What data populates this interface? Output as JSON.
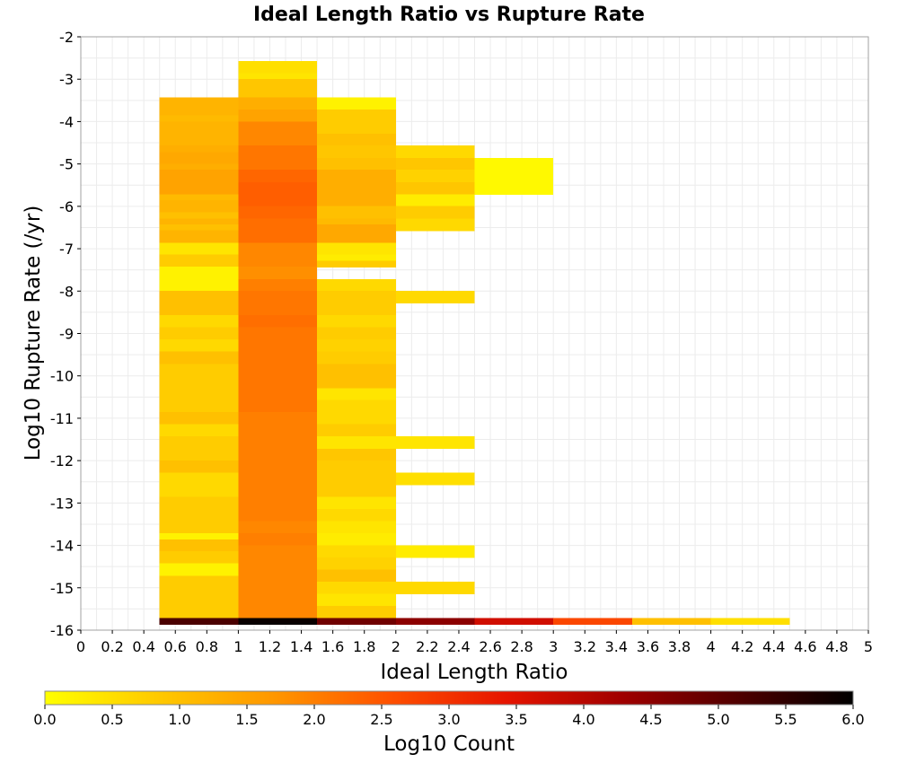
{
  "chart_data": {
    "type": "heatmap",
    "title": "Ideal Length Ratio vs Rupture Rate",
    "xlabel": "Ideal Length Ratio",
    "ylabel": "Log10 Rupture Rate (/yr)",
    "xlim": [
      0,
      5
    ],
    "ylim": [
      -16,
      -2
    ],
    "x_ticks": [
      "0",
      "0.2",
      "0.4",
      "0.6",
      "0.8",
      "1",
      "1.2",
      "1.4",
      "1.6",
      "1.8",
      "2",
      "2.2",
      "2.4",
      "2.6",
      "2.8",
      "3",
      "3.2",
      "3.4",
      "3.6",
      "3.8",
      "4",
      "4.2",
      "4.4",
      "4.6",
      "4.8",
      "5"
    ],
    "y_ticks": [
      "-2",
      "-3",
      "-4",
      "-5",
      "-6",
      "-7",
      "-8",
      "-9",
      "-10",
      "-11",
      "-12",
      "-13",
      "-14",
      "-15",
      "-16"
    ],
    "grid": true,
    "x_bin_width": 0.5,
    "y_bin_height": 0.143,
    "colorbar": {
      "label": "Log10 Count",
      "min": 0,
      "max": 6,
      "ticks": [
        "0.0",
        "0.5",
        "1.0",
        "1.5",
        "2.0",
        "2.5",
        "3.0",
        "3.5",
        "4.0",
        "4.5",
        "5.0",
        "5.5",
        "6.0"
      ],
      "colors": [
        "#ffff00",
        "#ffc800",
        "#ff9600",
        "#ff5000",
        "#e61400",
        "#a00000",
        "#500000",
        "#000000"
      ]
    },
    "columns": [
      {
        "x": 0.5,
        "cells": [
          [
            -3.57,
            1.2
          ],
          [
            -3.71,
            1.2
          ],
          [
            -3.86,
            1.2
          ],
          [
            -4.0,
            1.1
          ],
          [
            -4.14,
            1.2
          ],
          [
            -4.28,
            1.2
          ],
          [
            -4.43,
            1.2
          ],
          [
            -4.57,
            1.2
          ],
          [
            -4.71,
            1.3
          ],
          [
            -4.86,
            1.4
          ],
          [
            -5.0,
            1.4
          ],
          [
            -5.14,
            1.3
          ],
          [
            -5.28,
            1.5
          ],
          [
            -5.43,
            1.5
          ],
          [
            -5.57,
            1.5
          ],
          [
            -5.71,
            1.5
          ],
          [
            -5.86,
            1.1
          ],
          [
            -6.0,
            1.2
          ],
          [
            -6.14,
            1.2
          ],
          [
            -6.28,
            1.0
          ],
          [
            -6.43,
            1.2
          ],
          [
            -6.57,
            1.0
          ],
          [
            -6.71,
            1.2
          ],
          [
            -6.86,
            1.2
          ],
          [
            -7.0,
            0.4
          ],
          [
            -7.14,
            0.4
          ],
          [
            -7.28,
            0.8
          ],
          [
            -7.43,
            0.8
          ],
          [
            -7.57,
            0.2
          ],
          [
            -7.71,
            0.2
          ],
          [
            -7.86,
            0.2
          ],
          [
            -8.0,
            0.2
          ],
          [
            -8.14,
            1.0
          ],
          [
            -8.28,
            1.0
          ],
          [
            -8.43,
            1.0
          ],
          [
            -8.57,
            1.0
          ],
          [
            -8.71,
            0.6
          ],
          [
            -8.86,
            0.6
          ],
          [
            -9.0,
            0.8
          ],
          [
            -9.14,
            0.8
          ],
          [
            -9.28,
            0.6
          ],
          [
            -9.43,
            0.6
          ],
          [
            -9.57,
            1.0
          ],
          [
            -9.71,
            1.0
          ],
          [
            -9.86,
            0.8
          ],
          [
            -10.0,
            0.8
          ],
          [
            -10.14,
            0.8
          ],
          [
            -10.28,
            0.8
          ],
          [
            -10.43,
            0.8
          ],
          [
            -10.57,
            0.8
          ],
          [
            -10.71,
            0.8
          ],
          [
            -10.86,
            0.8
          ],
          [
            -11.0,
            1.0
          ],
          [
            -11.14,
            1.0
          ],
          [
            -11.28,
            0.6
          ],
          [
            -11.43,
            0.6
          ],
          [
            -11.57,
            0.8
          ],
          [
            -11.71,
            0.8
          ],
          [
            -11.86,
            0.8
          ],
          [
            -12.0,
            0.8
          ],
          [
            -12.14,
            1.0
          ],
          [
            -12.28,
            1.0
          ],
          [
            -12.43,
            0.6
          ],
          [
            -12.57,
            0.6
          ],
          [
            -12.71,
            0.6
          ],
          [
            -12.86,
            0.6
          ],
          [
            -13.0,
            0.8
          ],
          [
            -13.14,
            0.8
          ],
          [
            -13.28,
            0.8
          ],
          [
            -13.43,
            0.8
          ],
          [
            -13.57,
            0.8
          ],
          [
            -13.71,
            0.8
          ],
          [
            -13.86,
            0.2
          ],
          [
            -14.0,
            1.0
          ],
          [
            -14.14,
            1.0
          ],
          [
            -14.28,
            0.8
          ],
          [
            -14.43,
            0.8
          ],
          [
            -14.57,
            0.2
          ],
          [
            -14.71,
            0.2
          ],
          [
            -14.86,
            0.8
          ],
          [
            -15.0,
            0.8
          ],
          [
            -15.14,
            0.8
          ],
          [
            -15.28,
            0.8
          ],
          [
            -15.43,
            0.8
          ],
          [
            -15.57,
            0.8
          ],
          [
            -15.71,
            0.8
          ],
          [
            -15.86,
            5.2
          ]
        ]
      },
      {
        "x": 1.0,
        "cells": [
          [
            -2.71,
            0.5
          ],
          [
            -2.86,
            0.5
          ],
          [
            -3.0,
            0.4
          ],
          [
            -3.14,
            0.9
          ],
          [
            -3.28,
            0.9
          ],
          [
            -3.43,
            0.9
          ],
          [
            -3.57,
            1.3
          ],
          [
            -3.71,
            1.3
          ],
          [
            -3.86,
            1.5
          ],
          [
            -4.0,
            1.5
          ],
          [
            -4.14,
            1.9
          ],
          [
            -4.28,
            1.9
          ],
          [
            -4.43,
            1.9
          ],
          [
            -4.57,
            1.9
          ],
          [
            -4.71,
            2.1
          ],
          [
            -4.86,
            2.1
          ],
          [
            -5.0,
            2.1
          ],
          [
            -5.14,
            2.1
          ],
          [
            -5.28,
            2.3
          ],
          [
            -5.43,
            2.3
          ],
          [
            -5.57,
            2.4
          ],
          [
            -5.71,
            2.4
          ],
          [
            -5.86,
            2.4
          ],
          [
            -6.0,
            2.4
          ],
          [
            -6.14,
            2.3
          ],
          [
            -6.28,
            2.3
          ],
          [
            -6.43,
            2.2
          ],
          [
            -6.57,
            2.2
          ],
          [
            -6.71,
            2.2
          ],
          [
            -6.86,
            2.2
          ],
          [
            -7.0,
            1.9
          ],
          [
            -7.14,
            1.9
          ],
          [
            -7.28,
            1.9
          ],
          [
            -7.43,
            1.9
          ],
          [
            -7.57,
            1.8
          ],
          [
            -7.71,
            1.8
          ],
          [
            -7.86,
            2.0
          ],
          [
            -8.0,
            2.0
          ],
          [
            -8.14,
            2.1
          ],
          [
            -8.28,
            2.1
          ],
          [
            -8.43,
            2.1
          ],
          [
            -8.57,
            2.1
          ],
          [
            -8.71,
            2.2
          ],
          [
            -8.86,
            2.2
          ],
          [
            -9.0,
            2.1
          ],
          [
            -9.14,
            2.1
          ],
          [
            -9.28,
            2.1
          ],
          [
            -9.43,
            2.1
          ],
          [
            -9.57,
            2.1
          ],
          [
            -9.71,
            2.1
          ],
          [
            -9.86,
            2.1
          ],
          [
            -10.0,
            2.1
          ],
          [
            -10.14,
            2.1
          ],
          [
            -10.28,
            2.1
          ],
          [
            -10.43,
            2.1
          ],
          [
            -10.57,
            2.1
          ],
          [
            -10.71,
            2.1
          ],
          [
            -10.86,
            2.1
          ],
          [
            -11.0,
            2.0
          ],
          [
            -11.14,
            2.0
          ],
          [
            -11.28,
            2.0
          ],
          [
            -11.43,
            2.0
          ],
          [
            -11.57,
            2.0
          ],
          [
            -11.71,
            2.0
          ],
          [
            -11.86,
            2.0
          ],
          [
            -12.0,
            2.0
          ],
          [
            -12.14,
            2.0
          ],
          [
            -12.28,
            2.0
          ],
          [
            -12.43,
            2.0
          ],
          [
            -12.57,
            2.0
          ],
          [
            -12.71,
            2.0
          ],
          [
            -12.86,
            2.0
          ],
          [
            -13.0,
            2.0
          ],
          [
            -13.14,
            2.0
          ],
          [
            -13.28,
            2.0
          ],
          [
            -13.43,
            2.0
          ],
          [
            -13.57,
            1.9
          ],
          [
            -13.71,
            1.9
          ],
          [
            -13.86,
            2.0
          ],
          [
            -14.0,
            2.0
          ],
          [
            -14.14,
            1.9
          ],
          [
            -14.28,
            1.9
          ],
          [
            -14.43,
            1.9
          ],
          [
            -14.57,
            1.9
          ],
          [
            -14.71,
            1.9
          ],
          [
            -14.86,
            1.9
          ],
          [
            -15.0,
            1.9
          ],
          [
            -15.14,
            1.9
          ],
          [
            -15.28,
            1.9
          ],
          [
            -15.43,
            1.9
          ],
          [
            -15.57,
            1.9
          ],
          [
            -15.71,
            1.9
          ],
          [
            -15.86,
            5.9
          ]
        ]
      },
      {
        "x": 1.5,
        "cells": [
          [
            -3.57,
            0.2
          ],
          [
            -3.71,
            0.2
          ],
          [
            -3.86,
            0.8
          ],
          [
            -4.0,
            0.8
          ],
          [
            -4.14,
            0.8
          ],
          [
            -4.28,
            0.8
          ],
          [
            -4.43,
            1.0
          ],
          [
            -4.57,
            1.0
          ],
          [
            -4.71,
            0.9
          ],
          [
            -4.86,
            0.9
          ],
          [
            -5.0,
            1.0
          ],
          [
            -5.14,
            1.0
          ],
          [
            -5.28,
            1.3
          ],
          [
            -5.43,
            1.3
          ],
          [
            -5.57,
            1.3
          ],
          [
            -5.71,
            1.3
          ],
          [
            -5.86,
            1.3
          ],
          [
            -6.0,
            1.3
          ],
          [
            -6.14,
            1.0
          ],
          [
            -6.28,
            1.0
          ],
          [
            -6.43,
            1.1
          ],
          [
            -6.57,
            1.4
          ],
          [
            -6.71,
            1.4
          ],
          [
            -6.86,
            1.4
          ],
          [
            -7.0,
            0.4
          ],
          [
            -7.14,
            0.4
          ],
          [
            -7.28,
            0.3
          ],
          [
            -7.43,
            0.8
          ],
          [
            -7.86,
            0.6
          ],
          [
            -8.0,
            0.6
          ],
          [
            -8.14,
            0.8
          ],
          [
            -8.28,
            0.8
          ],
          [
            -8.43,
            0.8
          ],
          [
            -8.57,
            0.8
          ],
          [
            -8.71,
            0.6
          ],
          [
            -8.86,
            0.6
          ],
          [
            -9.0,
            0.8
          ],
          [
            -9.14,
            0.8
          ],
          [
            -9.28,
            0.7
          ],
          [
            -9.43,
            0.7
          ],
          [
            -9.57,
            0.8
          ],
          [
            -9.71,
            0.8
          ],
          [
            -9.86,
            1.0
          ],
          [
            -10.0,
            1.0
          ],
          [
            -10.14,
            1.0
          ],
          [
            -10.28,
            1.0
          ],
          [
            -10.43,
            0.4
          ],
          [
            -10.57,
            0.4
          ],
          [
            -10.71,
            0.6
          ],
          [
            -10.86,
            0.6
          ],
          [
            -11.0,
            0.6
          ],
          [
            -11.14,
            0.6
          ],
          [
            -11.28,
            0.8
          ],
          [
            -11.43,
            0.8
          ],
          [
            -11.57,
            0.4
          ],
          [
            -11.71,
            0.4
          ],
          [
            -11.86,
            0.9
          ],
          [
            -12.0,
            0.9
          ],
          [
            -12.14,
            0.8
          ],
          [
            -12.28,
            0.8
          ],
          [
            -12.43,
            0.8
          ],
          [
            -12.57,
            0.8
          ],
          [
            -12.71,
            0.8
          ],
          [
            -12.86,
            0.8
          ],
          [
            -13.0,
            0.4
          ],
          [
            -13.14,
            0.4
          ],
          [
            -13.28,
            0.6
          ],
          [
            -13.43,
            0.6
          ],
          [
            -13.57,
            0.4
          ],
          [
            -13.71,
            0.4
          ],
          [
            -13.86,
            0.3
          ],
          [
            -14.0,
            0.3
          ],
          [
            -14.14,
            0.6
          ],
          [
            -14.28,
            0.6
          ],
          [
            -14.43,
            0.7
          ],
          [
            -14.57,
            0.7
          ],
          [
            -14.71,
            1.0
          ],
          [
            -14.86,
            1.0
          ],
          [
            -15.0,
            0.6
          ],
          [
            -15.14,
            0.6
          ],
          [
            -15.28,
            0.4
          ],
          [
            -15.43,
            0.4
          ],
          [
            -15.57,
            0.8
          ],
          [
            -15.71,
            0.8
          ],
          [
            -15.86,
            4.8
          ]
        ]
      },
      {
        "x": 2.0,
        "cells": [
          [
            -4.71,
            0.6
          ],
          [
            -4.86,
            0.6
          ],
          [
            -5.0,
            0.9
          ],
          [
            -5.14,
            0.9
          ],
          [
            -5.28,
            0.7
          ],
          [
            -5.43,
            0.7
          ],
          [
            -5.57,
            0.9
          ],
          [
            -5.71,
            0.9
          ],
          [
            -5.86,
            0.3
          ],
          [
            -6.0,
            0.3
          ],
          [
            -6.14,
            0.8
          ],
          [
            -6.28,
            0.8
          ],
          [
            -6.43,
            0.6
          ],
          [
            -6.57,
            0.6
          ],
          [
            -8.14,
            0.6
          ],
          [
            -8.28,
            0.6
          ],
          [
            -11.57,
            0.4
          ],
          [
            -11.71,
            0.4
          ],
          [
            -12.43,
            0.5
          ],
          [
            -12.57,
            0.5
          ],
          [
            -14.14,
            0.3
          ],
          [
            -14.28,
            0.3
          ],
          [
            -15.0,
            0.6
          ],
          [
            -15.14,
            0.6
          ],
          [
            -15.86,
            4.5
          ]
        ]
      },
      {
        "x": 2.5,
        "cells": [
          [
            -5.0,
            0.1
          ],
          [
            -5.14,
            0.1
          ],
          [
            -5.28,
            0.1
          ],
          [
            -5.43,
            0.1
          ],
          [
            -5.57,
            0.1
          ],
          [
            -5.71,
            0.1
          ],
          [
            -15.86,
            3.7
          ]
        ]
      },
      {
        "x": 3.0,
        "cells": [
          [
            -15.86,
            2.7
          ]
        ]
      },
      {
        "x": 3.5,
        "cells": [
          [
            -15.86,
            1.0
          ]
        ]
      },
      {
        "x": 4.0,
        "cells": [
          [
            -15.86,
            0.5
          ]
        ]
      }
    ]
  }
}
